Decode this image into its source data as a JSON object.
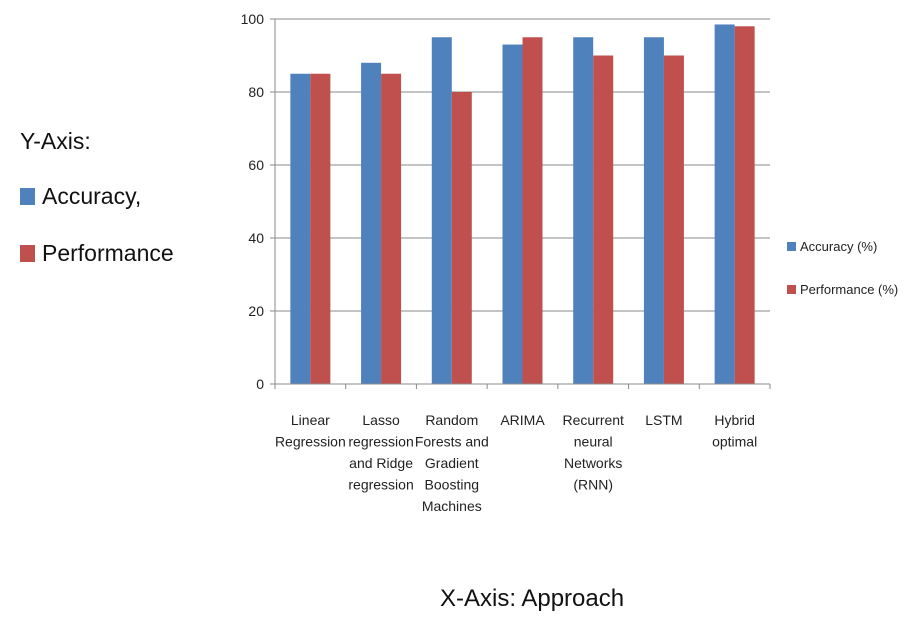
{
  "side_note": {
    "title": "Y-Axis:",
    "items": [
      {
        "label": "Accuracy,",
        "color": "#4f81bd"
      },
      {
        "label": "Performance",
        "color": "#c0504d"
      }
    ]
  },
  "x_caption": "X-Axis: Approach",
  "chart_data": {
    "type": "bar",
    "categories": [
      [
        "Linear",
        "Regression"
      ],
      [
        "Lasso",
        "regression",
        "and Ridge",
        "regression"
      ],
      [
        "Random",
        "Forests and",
        "Gradient",
        "Boosting",
        "Machines"
      ],
      [
        "ARIMA"
      ],
      [
        "Recurrent",
        "neural",
        "Networks",
        "(RNN)"
      ],
      [
        "LSTM"
      ],
      [
        "Hybrid",
        "optimal"
      ]
    ],
    "series": [
      {
        "name": "Accuracy (%)",
        "color": "#4f81bd",
        "values": [
          85,
          88,
          95,
          93,
          95,
          95,
          98.5
        ]
      },
      {
        "name": "Performance (%)",
        "color": "#c0504d",
        "values": [
          85,
          85,
          80,
          95,
          90,
          90,
          98
        ]
      }
    ],
    "ylim": [
      0,
      100
    ],
    "yticks": [
      0,
      20,
      40,
      60,
      80,
      100
    ],
    "grid": true,
    "legend": "right"
  }
}
